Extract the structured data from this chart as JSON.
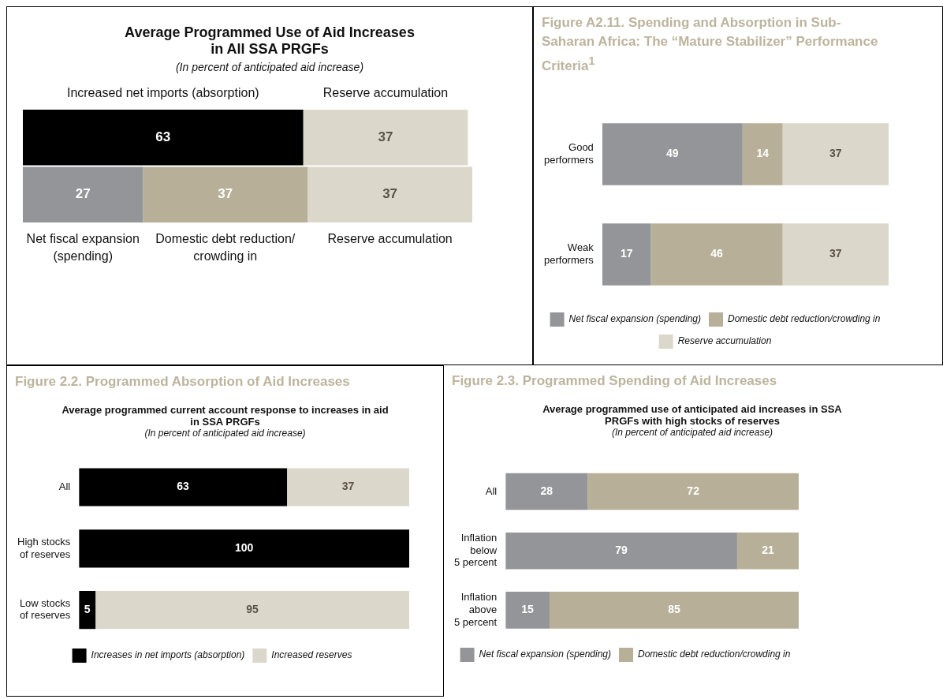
{
  "chart_data": [
    {
      "type": "bar",
      "orientation": "horizontal",
      "stacked": true,
      "title": "Average Programmed Use of Aid Increases in All SSA PRGFs",
      "subtitle": "(In percent of anticipated aid increase)",
      "categories": [
        null,
        null
      ],
      "xlim": [
        0,
        101
      ],
      "tick_labels": false,
      "data_labels": true,
      "legend": false,
      "series": [
        {
          "name": "Increased net imports (absorption)",
          "color": "#000000",
          "values": [
            63,
            null
          ]
        },
        {
          "name": "Reserve accumulation",
          "color": "#dbd7cb",
          "values": [
            37,
            null
          ]
        },
        {
          "name": "Net fiscal expansion (spending)",
          "color": "#939598",
          "values": [
            null,
            27
          ]
        },
        {
          "name": "Domestic debt reduction/ crowding in",
          "color": "#b8af98",
          "values": [
            null,
            37
          ]
        },
        {
          "name": "Reserve accumulation",
          "color": "#dbd7cb",
          "values": [
            null,
            37
          ]
        }
      ]
    },
    {
      "type": "bar",
      "orientation": "horizontal",
      "stacked": true,
      "title": "Figure A2.11.  Spending and Absorption in Sub-Saharan Africa: The “Mature Stabilizer” Performance Criteria$^{1}$",
      "categories": [
        "Good performers",
        "Weak performers"
      ],
      "xlim": [
        0,
        100
      ],
      "tick_labels": "y",
      "data_labels": true,
      "legend": "bottom",
      "series": [
        {
          "name": "Net fiscal expansion (spending)",
          "color": "#939598",
          "values": [
            49,
            17
          ]
        },
        {
          "name": "Domestic debt reduction/crowding in",
          "color": "#b8af98",
          "values": [
            14,
            46
          ]
        },
        {
          "name": "Reserve accumulation",
          "color": "#dbd7cb",
          "values": [
            37,
            37
          ]
        }
      ]
    },
    {
      "type": "bar",
      "orientation": "horizontal",
      "stacked": true,
      "title": "Figure 2.2.  Programmed Absorption of Aid Increases",
      "subtitle": "Average programmed current account response to increases in aid in SSA PRGFs",
      "annotations": [
        "(In percent of anticipated aid increase)"
      ],
      "categories": [
        "All",
        "High stocks of reserves",
        "Low stocks of reserves"
      ],
      "xlim": [
        0,
        100
      ],
      "tick_labels": "y",
      "data_labels": true,
      "legend": "bottom",
      "series": [
        {
          "name": "Increases in net imports (absorption)",
          "color": "#000000",
          "values": [
            63,
            100,
            5
          ]
        },
        {
          "name": "Increased reserves",
          "color": "#dbd7cb",
          "values": [
            37,
            null,
            95
          ]
        }
      ]
    },
    {
      "type": "bar",
      "orientation": "horizontal",
      "stacked": true,
      "title": "Figure 2.3.  Programmed Spending of Aid Increases",
      "subtitle": "Average programmed use of anticipated aid increases in SSA PRGFs with high stocks of reserves",
      "annotations": [
        "(In percent of anticipated aid increase)"
      ],
      "categories": [
        "All",
        "Inflation below 5 percent",
        "Inflation above 5 percent"
      ],
      "xlim": [
        0,
        100
      ],
      "tick_labels": "y",
      "data_labels": true,
      "legend": "bottom",
      "series": [
        {
          "name": "Net fiscal expansion (spending)",
          "color": "#939598",
          "values": [
            28,
            79,
            15
          ]
        },
        {
          "name": "Domestic debt reduction/crowding in",
          "color": "#b8af98",
          "values": [
            72,
            21,
            85
          ]
        }
      ]
    }
  ]
}
